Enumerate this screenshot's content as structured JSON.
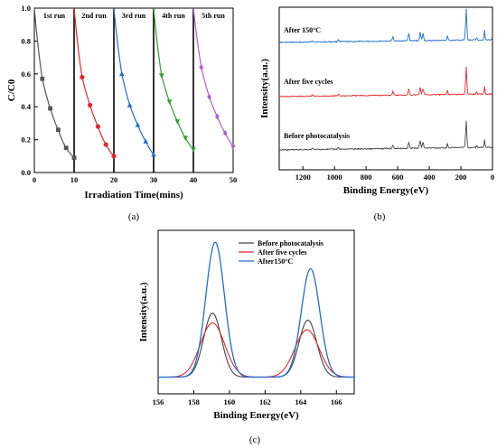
{
  "chart_data": [
    {
      "type": "line",
      "panel_label": "(a)",
      "xlabel": "Irradiation Time(mins)",
      "ylabel": "C/C0",
      "xlim": [
        0,
        50
      ],
      "ylim": [
        0,
        1.0
      ],
      "x_ticks": [
        0,
        10,
        20,
        30,
        40,
        50
      ],
      "y_ticks": [
        0.0,
        0.2,
        0.4,
        0.6,
        0.8,
        1.0
      ],
      "annotations": [
        "1st run",
        "2nd run",
        "3rd run",
        "4th run",
        "5th run"
      ],
      "series": [
        {
          "color": "#555555",
          "marker": "square",
          "x": [
            0,
            2,
            4,
            6,
            8,
            10
          ],
          "y": [
            1.0,
            0.57,
            0.39,
            0.26,
            0.15,
            0.09
          ]
        },
        {
          "color": "#e8262a",
          "marker": "circle",
          "x": [
            10,
            12,
            14,
            16,
            18,
            20
          ],
          "y": [
            1.0,
            0.58,
            0.41,
            0.28,
            0.17,
            0.1
          ]
        },
        {
          "color": "#1f6fd0",
          "marker": "triangle-up",
          "x": [
            20,
            22,
            24,
            26,
            28,
            30
          ],
          "y": [
            1.0,
            0.6,
            0.41,
            0.29,
            0.19,
            0.11
          ]
        },
        {
          "color": "#2ca02c",
          "marker": "triangle-down",
          "x": [
            30,
            32,
            34,
            36,
            38,
            40
          ],
          "y": [
            1.0,
            0.59,
            0.43,
            0.31,
            0.21,
            0.14
          ]
        },
        {
          "color": "#b05cd0",
          "marker": "diamond",
          "x": [
            40,
            42,
            44,
            46,
            48,
            50
          ],
          "y": [
            1.0,
            0.64,
            0.46,
            0.34,
            0.24,
            0.16
          ]
        }
      ]
    },
    {
      "type": "line",
      "panel_label": "(b)",
      "xlabel": "Binding Energy(eV)",
      "ylabel": "Intensity(a.u.)",
      "xlim": [
        1350,
        0
      ],
      "x_ticks": [
        1200,
        1000,
        800,
        600,
        400,
        200,
        0
      ],
      "series": [
        {
          "name": "After 150°C",
          "color": "#1f6fd0"
        },
        {
          "name": "After five cycles",
          "color": "#e8262a"
        },
        {
          "name": "Before photocatalysis",
          "color": "#444444"
        }
      ]
    },
    {
      "type": "line",
      "panel_label": "(c)",
      "xlabel": "Binding Energy(eV)",
      "ylabel": "Intensity(a.u.)",
      "xlim": [
        156,
        167
      ],
      "x_ticks": [
        156,
        158,
        160,
        162,
        164,
        166
      ],
      "legend_position": "top-right",
      "series": [
        {
          "name": "Before photocatalysis",
          "color": "#444444",
          "peaks": [
            [
              159.05,
              0.46
            ],
            [
              164.4,
              0.41
            ]
          ],
          "width": 0.5,
          "baseline": 0.05
        },
        {
          "name": "After five cycles",
          "color": "#e8262a",
          "peaks": [
            [
              159.05,
              0.39
            ],
            [
              164.35,
              0.34
            ]
          ],
          "width": 0.68,
          "baseline": 0.05
        },
        {
          "name": "After150°C",
          "color": "#1f6fd0",
          "peaks": [
            [
              159.2,
              0.97
            ],
            [
              164.55,
              0.78
            ]
          ],
          "width": 0.52,
          "baseline": 0.05
        }
      ]
    }
  ]
}
